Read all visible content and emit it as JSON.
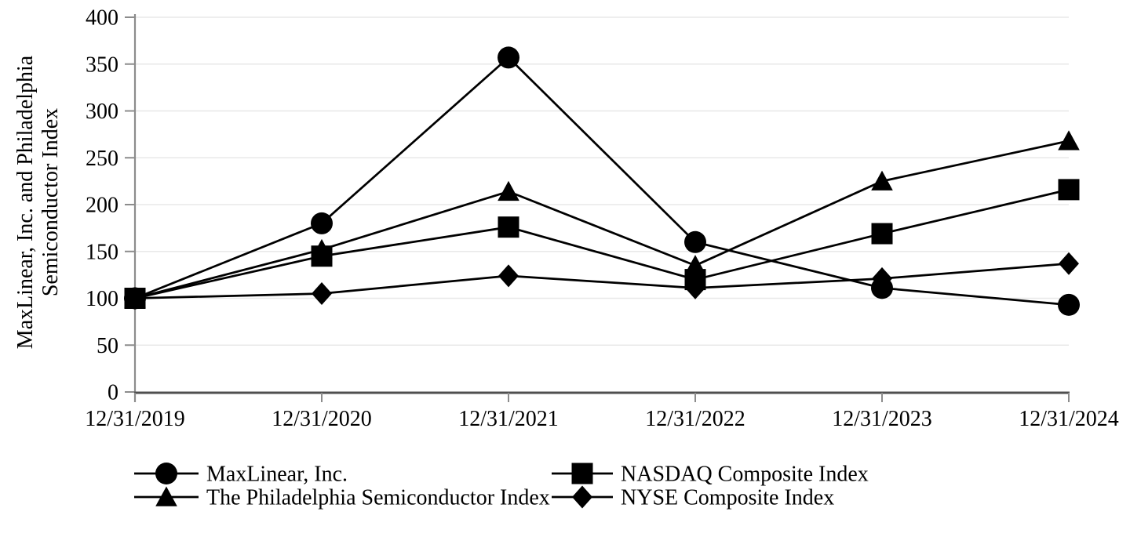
{
  "chart_data": {
    "type": "line",
    "title": "",
    "xlabel": "",
    "ylabel_line1": "MaxLinear, Inc. and Philadelphia",
    "ylabel_line2": "Semiconductor Index",
    "categories": [
      "12/31/2019",
      "12/31/2020",
      "12/31/2021",
      "12/31/2022",
      "12/31/2023",
      "12/31/2024"
    ],
    "series": [
      {
        "key": "maxlinear",
        "name": "MaxLinear, Inc.",
        "marker": "circle",
        "values": [
          100,
          180,
          357,
          160,
          111,
          93
        ]
      },
      {
        "key": "nasdaq",
        "name": "NASDAQ Composite Index",
        "marker": "square",
        "values": [
          100,
          145,
          176,
          120,
          169,
          216
        ]
      },
      {
        "key": "philadelphia-semiconductor",
        "name": "The Philadelphia Semiconductor Index",
        "marker": "triangle",
        "values": [
          100,
          152,
          214,
          135,
          225,
          268
        ]
      },
      {
        "key": "nyse",
        "name": "NYSE Composite Index",
        "marker": "diamond",
        "values": [
          100,
          105,
          124,
          111,
          121,
          137
        ]
      }
    ],
    "ylim": [
      0,
      400
    ],
    "yticks": [
      0,
      50,
      100,
      150,
      200,
      250,
      300,
      350,
      400
    ],
    "grid": "horizontal",
    "legend_position": "bottom",
    "colors": {
      "series": "#000000",
      "gridline": "#e8e8e8",
      "y_axis": "#8c8c8c",
      "x_axis": "#4f4f4f",
      "text": "#000000",
      "background": "#ffffff"
    }
  }
}
